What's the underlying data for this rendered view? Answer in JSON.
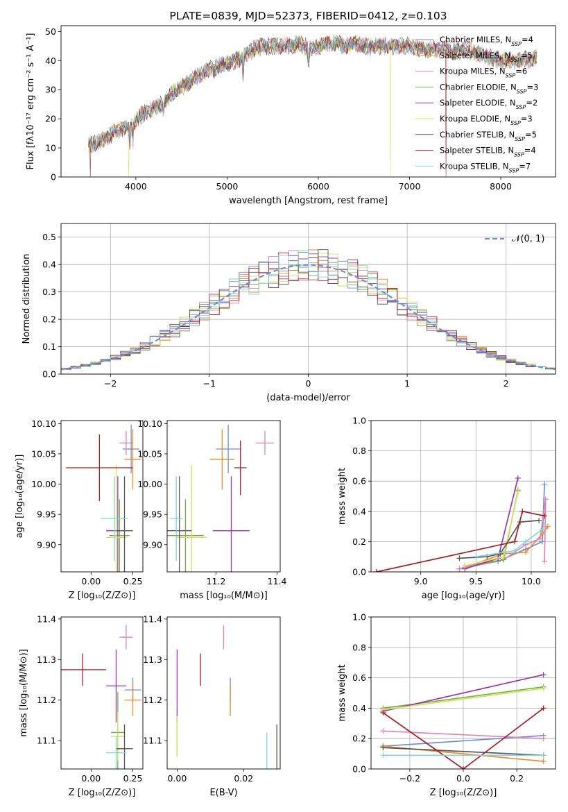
{
  "figure_title": "PLATE=0839, MJD=52373, FIBERID=0412, z=0.103",
  "palette": {
    "chabrier_miles": "#6a8fd6",
    "salpeter_miles": "#f08a2c",
    "kroupa_miles": "#e084b6",
    "chabrier_elodie": "#6fae46",
    "salpeter_elodie": "#9a35b0",
    "kroupa_elodie": "#d7e05a",
    "chabrier_stelib": "#555555",
    "salpeter_stelib": "#a51e24",
    "kroupa_stelib": "#7fd6d8",
    "gaussian": "#6a8fd6",
    "grid": "#b0b0b0"
  },
  "chart_data": [
    {
      "id": "spectrum",
      "type": "line",
      "title": "PLATE=0839, MJD=52373, FIBERID=0412, z=0.103",
      "xlabel": "wavelength [Angstrom, rest frame]",
      "ylabel": "Flux [fλ10⁻¹⁷ erg cm⁻² s⁻¹ A⁻¹]",
      "xlim": [
        3180,
        8600
      ],
      "ylim": [
        0,
        52
      ],
      "xticks": [
        4000,
        5000,
        6000,
        7000,
        8000
      ],
      "yticks": [
        0,
        10,
        20,
        30,
        40,
        50
      ],
      "grid": false,
      "legend_position": "top-right",
      "continuum": [
        [
          3480,
          11
        ],
        [
          3600,
          12
        ],
        [
          3700,
          14
        ],
        [
          3800,
          16
        ],
        [
          3900,
          17
        ],
        [
          3950,
          17
        ],
        [
          4000,
          20
        ],
        [
          4100,
          22
        ],
        [
          4200,
          24
        ],
        [
          4300,
          25
        ],
        [
          4400,
          29
        ],
        [
          4500,
          31
        ],
        [
          4600,
          33
        ],
        [
          4700,
          35
        ],
        [
          4800,
          37
        ],
        [
          4900,
          38
        ],
        [
          5000,
          39
        ],
        [
          5100,
          40
        ],
        [
          5200,
          42
        ],
        [
          5300,
          44
        ],
        [
          5400,
          45
        ],
        [
          5500,
          45
        ],
        [
          5600,
          45
        ],
        [
          5700,
          45
        ],
        [
          5800,
          46
        ],
        [
          5900,
          44
        ],
        [
          6000,
          45
        ],
        [
          6100,
          46
        ],
        [
          6200,
          46
        ],
        [
          6300,
          45
        ],
        [
          6400,
          46
        ],
        [
          6500,
          45
        ],
        [
          6600,
          45
        ],
        [
          6700,
          45
        ],
        [
          6800,
          45
        ],
        [
          6900,
          45
        ],
        [
          7000,
          45
        ],
        [
          7100,
          44
        ],
        [
          7200,
          44
        ],
        [
          7300,
          44
        ],
        [
          7400,
          44
        ],
        [
          7500,
          43
        ],
        [
          7600,
          44
        ],
        [
          7800,
          42
        ],
        [
          8000,
          40
        ],
        [
          8200,
          40
        ],
        [
          8400,
          41
        ]
      ],
      "absorption_lines": [
        [
          3933,
          6
        ],
        [
          3968,
          6
        ],
        [
          4300,
          3
        ],
        [
          4861,
          3
        ],
        [
          5175,
          6
        ],
        [
          5893,
          5
        ],
        [
          6563,
          2
        ]
      ],
      "spikes_to_zero": [
        [
          3500,
          "salpeter_stelib"
        ],
        [
          3920,
          "kroupa_elodie"
        ],
        [
          6790,
          "kroupa_elodie"
        ],
        [
          7400,
          "salpeter_stelib"
        ]
      ],
      "series": [
        {
          "name": "Chabrier MILES, N_SSP=4",
          "color_key": "chabrier_miles"
        },
        {
          "name": "Salpeter MILES, N_SSP=5",
          "color_key": "salpeter_miles"
        },
        {
          "name": "Kroupa MILES, N_SSP=6",
          "color_key": "kroupa_miles"
        },
        {
          "name": "Chabrier ELODIE, N_SSP=3",
          "color_key": "chabrier_elodie"
        },
        {
          "name": "Salpeter ELODIE, N_SSP=2",
          "color_key": "salpeter_elodie"
        },
        {
          "name": "Kroupa ELODIE, N_SSP=3",
          "color_key": "kroupa_elodie"
        },
        {
          "name": "Chabrier STELIB, N_SSP=5",
          "color_key": "chabrier_stelib"
        },
        {
          "name": "Salpeter STELIB, N_SSP=4",
          "color_key": "salpeter_stelib"
        },
        {
          "name": "Kroupa STELIB, N_SSP=7",
          "color_key": "kroupa_stelib"
        }
      ]
    },
    {
      "id": "residuals",
      "type": "histogram",
      "xlabel": "(data-model)/error",
      "ylabel": "Normed distribution",
      "xlim": [
        -2.5,
        2.5
      ],
      "ylim": [
        0,
        0.55
      ],
      "xticks": [
        -2,
        -1,
        0,
        1,
        2
      ],
      "yticks": [
        0.0,
        0.1,
        0.2,
        0.3,
        0.4,
        0.5
      ],
      "grid": true,
      "legend_position": "top-right",
      "reference_curve": {
        "name": "𝒩(0, 1)",
        "style": "dashed",
        "color_key": "gaussian"
      },
      "bin_width": 0.1
    },
    {
      "id": "age_vs_Z",
      "type": "errorbar",
      "xlabel": "Z [log₁₀(Z/Z⊙)]",
      "ylabel": "age  [log₁₀(age/yr)]",
      "xlim": [
        -0.18,
        0.31
      ],
      "ylim": [
        9.855,
        10.105
      ],
      "xticks": [
        0.0,
        0.25
      ],
      "yticks": [
        9.9,
        9.95,
        10.0,
        10.05,
        10.1
      ],
      "points": [
        {
          "k": "chabrier_miles",
          "x": 0.24,
          "y": 10.058,
          "xe": 0.05,
          "ye": 0.04
        },
        {
          "k": "salpeter_miles",
          "x": 0.25,
          "y": 10.041,
          "xe": 0.05,
          "ye": 0.05
        },
        {
          "k": "kroupa_miles",
          "x": 0.21,
          "y": 10.068,
          "xe": 0.04,
          "ye": 0.02
        },
        {
          "k": "chabrier_elodie",
          "x": 0.17,
          "y": 9.915,
          "xe": 0.06,
          "ye": 0.06
        },
        {
          "k": "salpeter_elodie",
          "x": 0.16,
          "y": 9.923,
          "xe": 0.07,
          "ye": 0.09
        },
        {
          "k": "kroupa_elodie",
          "x": 0.15,
          "y": 9.912,
          "xe": 0.06,
          "ye": 0.12
        },
        {
          "k": "chabrier_stelib",
          "x": 0.2,
          "y": 9.923,
          "xe": 0.05,
          "ye": 0.09
        },
        {
          "k": "salpeter_stelib",
          "x": 0.05,
          "y": 10.027,
          "xe": 0.2,
          "ye": 0.055
        },
        {
          "k": "kroupa_stelib",
          "x": 0.14,
          "y": 9.943,
          "xe": 0.08,
          "ye": 0.07
        }
      ]
    },
    {
      "id": "age_vs_mass",
      "type": "errorbar",
      "xlabel": "mass [log₁₀(M/M⊙)]",
      "ylabel": "",
      "xlim": [
        11.04,
        11.41
      ],
      "ylim": [
        9.855,
        10.105
      ],
      "xticks": [
        11.2,
        11.4
      ],
      "yticks": [
        9.9,
        9.95,
        10.0,
        10.05,
        10.1
      ],
      "points": [
        {
          "k": "chabrier_miles",
          "x": 11.24,
          "y": 10.058,
          "xe": 0.04,
          "ye": 0.04
        },
        {
          "k": "salpeter_miles",
          "x": 11.22,
          "y": 10.041,
          "xe": 0.04,
          "ye": 0.05
        },
        {
          "k": "kroupa_miles",
          "x": 11.36,
          "y": 10.068,
          "xe": 0.03,
          "ye": 0.02
        },
        {
          "k": "chabrier_elodie",
          "x": 11.1,
          "y": 9.915,
          "xe": 0.06,
          "ye": 0.06
        },
        {
          "k": "salpeter_elodie",
          "x": 11.25,
          "y": 9.923,
          "xe": 0.06,
          "ye": 0.09
        },
        {
          "k": "kroupa_elodie",
          "x": 11.12,
          "y": 9.912,
          "xe": 0.05,
          "ye": 0.12
        },
        {
          "k": "chabrier_stelib",
          "x": 11.08,
          "y": 9.923,
          "xe": 0.04,
          "ye": 0.09
        },
        {
          "k": "salpeter_stelib",
          "x": 11.28,
          "y": 10.027,
          "xe": 0.02,
          "ye": 0.045
        },
        {
          "k": "kroupa_stelib",
          "x": 11.07,
          "y": 9.943,
          "xe": 0.02,
          "ye": 0.07
        }
      ]
    },
    {
      "id": "massweight_vs_age",
      "type": "line",
      "xlabel": "age  [log₁₀(age/yr)]",
      "ylabel": "mass weight",
      "xlim": [
        8.55,
        10.22
      ],
      "ylim": [
        0,
        1
      ],
      "xticks": [
        9.0,
        9.5,
        10.0
      ],
      "yticks": [
        0.0,
        0.2,
        0.4,
        0.6,
        0.8,
        1.0
      ],
      "grid": true,
      "series": [
        {
          "k": "chabrier_miles",
          "points": [
            [
              9.35,
              0.02
            ],
            [
              9.7,
              0.07
            ],
            [
              9.95,
              0.15
            ],
            [
              10.1,
              0.2
            ],
            [
              10.12,
              0.58
            ]
          ]
        },
        {
          "k": "salpeter_miles",
          "points": [
            [
              9.4,
              0.03
            ],
            [
              9.75,
              0.12
            ],
            [
              9.95,
              0.13
            ],
            [
              10.1,
              0.25
            ],
            [
              10.15,
              0.3
            ]
          ]
        },
        {
          "k": "kroupa_miles",
          "points": [
            [
              9.35,
              0.02
            ],
            [
              9.75,
              0.08
            ],
            [
              9.95,
              0.18
            ],
            [
              10.08,
              0.22
            ],
            [
              10.13,
              0.48
            ],
            [
              10.12,
              0.07
            ]
          ]
        },
        {
          "k": "chabrier_elodie",
          "points": [
            [
              9.4,
              0.04
            ],
            [
              9.75,
              0.08
            ],
            [
              9.88,
              0.54
            ]
          ]
        },
        {
          "k": "salpeter_elodie",
          "points": [
            [
              9.4,
              0.02
            ],
            [
              9.7,
              0.09
            ],
            [
              9.88,
              0.62
            ]
          ]
        },
        {
          "k": "kroupa_elodie",
          "points": [
            [
              9.4,
              0.04
            ],
            [
              9.75,
              0.1
            ],
            [
              9.88,
              0.53
            ]
          ]
        },
        {
          "k": "chabrier_stelib",
          "points": [
            [
              9.35,
              0.09
            ],
            [
              9.6,
              0.1
            ],
            [
              9.72,
              0.12
            ],
            [
              9.9,
              0.33
            ],
            [
              10.07,
              0.34
            ]
          ]
        },
        {
          "k": "salpeter_stelib",
          "points": [
            [
              8.6,
              0.0
            ],
            [
              9.85,
              0.2
            ],
            [
              9.92,
              0.4
            ],
            [
              10.12,
              0.37
            ]
          ]
        },
        {
          "k": "kroupa_stelib",
          "points": [
            [
              9.5,
              0.1
            ],
            [
              9.85,
              0.14
            ],
            [
              9.95,
              0.2
            ],
            [
              10.1,
              0.28
            ]
          ]
        }
      ]
    },
    {
      "id": "mass_vs_Z",
      "type": "errorbar",
      "xlabel": "Z [log₁₀(Z/Z⊙)]",
      "ylabel": "mass [log₁₀(M/M⊙)]",
      "xlim": [
        -0.18,
        0.31
      ],
      "ylim": [
        11.03,
        11.405
      ],
      "xticks": [
        0.0,
        0.25
      ],
      "yticks": [
        11.1,
        11.2,
        11.3,
        11.4
      ],
      "points": [
        {
          "k": "chabrier_miles",
          "x": 0.25,
          "y": 11.225,
          "xe": 0.05,
          "ye": 0.03
        },
        {
          "k": "salpeter_miles",
          "x": 0.25,
          "y": 11.2,
          "xe": 0.05,
          "ye": 0.04
        },
        {
          "k": "kroupa_miles",
          "x": 0.21,
          "y": 11.355,
          "xe": 0.04,
          "ye": 0.03
        },
        {
          "k": "chabrier_elodie",
          "x": 0.16,
          "y": 11.12,
          "xe": 0.04,
          "ye": 0.1
        },
        {
          "k": "salpeter_elodie",
          "x": 0.15,
          "y": 11.235,
          "xe": 0.06,
          "ye": 0.09
        },
        {
          "k": "kroupa_elodie",
          "x": 0.16,
          "y": 11.11,
          "xe": 0.04,
          "ye": 0.06
        },
        {
          "k": "chabrier_stelib",
          "x": 0.2,
          "y": 11.08,
          "xe": 0.05,
          "ye": 0.06
        },
        {
          "k": "salpeter_stelib",
          "x": -0.05,
          "y": 11.275,
          "xe": 0.14,
          "ye": 0.04
        },
        {
          "k": "kroupa_stelib",
          "x": 0.15,
          "y": 11.07,
          "xe": 0.06,
          "ye": 0.04
        }
      ]
    },
    {
      "id": "mass_vs_ebv",
      "type": "errorbar",
      "xlabel": "E(B-V)",
      "ylabel": "",
      "xlim": [
        -0.003,
        0.031
      ],
      "ylim": [
        11.03,
        11.405
      ],
      "xticks": [
        0.0,
        0.02
      ],
      "yticks": [
        11.1,
        11.2,
        11.3,
        11.4
      ],
      "points": [
        {
          "k": "chabrier_miles",
          "x": 0.016,
          "y": 11.225,
          "xe": 0,
          "ye": 0.03
        },
        {
          "k": "salpeter_miles",
          "x": 0.016,
          "y": 11.2,
          "xe": 0,
          "ye": 0.04
        },
        {
          "k": "kroupa_miles",
          "x": 0.014,
          "y": 11.355,
          "xe": 0,
          "ye": 0.03
        },
        {
          "k": "chabrier_elodie",
          "x": 0.0,
          "y": 11.12,
          "xe": 0,
          "ye": 0.06
        },
        {
          "k": "salpeter_elodie",
          "x": 0.0,
          "y": 11.235,
          "xe": 0,
          "ye": 0.09
        },
        {
          "k": "kroupa_elodie",
          "x": 0.0,
          "y": 11.11,
          "xe": 0,
          "ye": 0.05
        },
        {
          "k": "chabrier_stelib",
          "x": 0.03,
          "y": 11.08,
          "xe": 0,
          "ye": 0.06
        },
        {
          "k": "salpeter_stelib",
          "x": 0.007,
          "y": 11.275,
          "xe": 0,
          "ye": 0.04
        },
        {
          "k": "kroupa_stelib",
          "x": 0.027,
          "y": 11.07,
          "xe": 0,
          "ye": 0.05
        }
      ]
    },
    {
      "id": "massweight_vs_Z",
      "type": "line",
      "xlabel": "Z [log₁₀(Z/Z⊙)]",
      "ylabel": "mass weight",
      "xlim": [
        -0.345,
        0.345
      ],
      "ylim": [
        0,
        1
      ],
      "xticks": [
        -0.2,
        0.0,
        0.2
      ],
      "yticks": [
        0.0,
        0.2,
        0.4,
        0.6,
        0.8,
        1.0
      ],
      "grid": true,
      "series": [
        {
          "k": "chabrier_miles",
          "points": [
            [
              -0.3,
              0.15
            ],
            [
              0.3,
              0.22
            ]
          ]
        },
        {
          "k": "salpeter_miles",
          "points": [
            [
              -0.3,
              0.15
            ],
            [
              0.3,
              0.05
            ]
          ]
        },
        {
          "k": "kroupa_miles",
          "points": [
            [
              -0.3,
              0.25
            ],
            [
              0.3,
              0.2
            ]
          ]
        },
        {
          "k": "chabrier_elodie",
          "points": [
            [
              -0.3,
              0.4
            ],
            [
              0.3,
              0.54
            ]
          ]
        },
        {
          "k": "salpeter_elodie",
          "points": [
            [
              -0.3,
              0.38
            ],
            [
              0.3,
              0.62
            ]
          ]
        },
        {
          "k": "kroupa_elodie",
          "points": [
            [
              -0.3,
              0.39
            ],
            [
              0.3,
              0.53
            ]
          ]
        },
        {
          "k": "chabrier_stelib",
          "points": [
            [
              -0.3,
              0.14
            ],
            [
              0.3,
              0.09
            ]
          ]
        },
        {
          "k": "salpeter_stelib",
          "points": [
            [
              -0.3,
              0.37
            ],
            [
              0.0,
              0.0
            ],
            [
              0.3,
              0.4
            ]
          ]
        },
        {
          "k": "kroupa_stelib",
          "points": [
            [
              -0.3,
              0.09
            ],
            [
              0.3,
              0.09
            ]
          ]
        }
      ]
    }
  ]
}
